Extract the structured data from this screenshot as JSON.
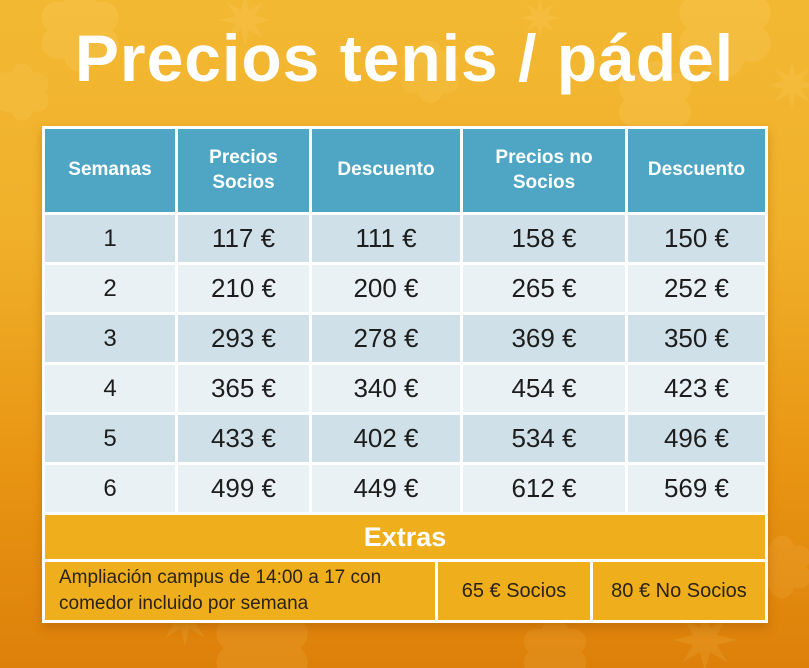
{
  "title": "Precios tenis / pádel",
  "table": {
    "headers": [
      "Semanas",
      "Precios Socios",
      "Descuento",
      "Precios no Socios",
      "Descuento"
    ],
    "rows": [
      [
        "1",
        "117 €",
        "111 €",
        "158 €",
        "150 €"
      ],
      [
        "2",
        "210 €",
        "200 €",
        "265 €",
        "252 €"
      ],
      [
        "3",
        "293 €",
        "278 €",
        "369 €",
        "350 €"
      ],
      [
        "4",
        "365 €",
        "340 €",
        "454 €",
        "423 €"
      ],
      [
        "5",
        "433 €",
        "402 €",
        "534 €",
        "496 €"
      ],
      [
        "6",
        "499 €",
        "449 €",
        "612 €",
        "569 €"
      ]
    ],
    "extras": {
      "label": "Extras",
      "description": "Ampliación campus de 14:00 a 17 con comedor incluido por semana",
      "price_socios": "65 € Socios",
      "price_no_socios": "80 € No Socios"
    }
  },
  "colors": {
    "header_bg": "#4FA6C4",
    "row_odd_bg": "#CFE0E9",
    "row_even_bg": "#E9F1F5",
    "extras_bg": "#EFAF1D",
    "background_top": "#F3B832",
    "background_bottom": "#DD800A",
    "title_color": "#FFFFFF",
    "grid_line": "#FFFFFF"
  }
}
